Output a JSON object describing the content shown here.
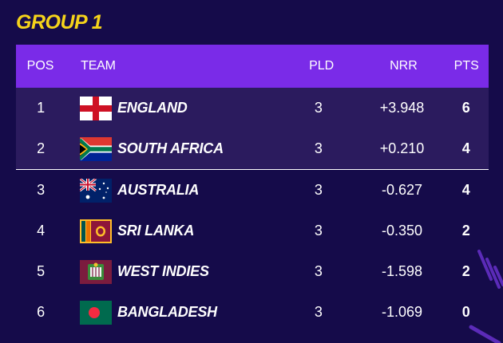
{
  "title": "GROUP 1",
  "headers": {
    "pos": "POS",
    "team": "TEAM",
    "pld": "PLD",
    "nrr": "NRR",
    "pts": "PTS"
  },
  "rows": [
    {
      "pos": "1",
      "team": "ENGLAND",
      "flag": "england-flag-icon",
      "pld": "3",
      "nrr": "+3.948",
      "pts": "6"
    },
    {
      "pos": "2",
      "team": "SOUTH AFRICA",
      "flag": "south-africa-flag-icon",
      "pld": "3",
      "nrr": "+0.210",
      "pts": "4"
    },
    {
      "pos": "3",
      "team": "AUSTRALIA",
      "flag": "australia-flag-icon",
      "pld": "3",
      "nrr": "-0.627",
      "pts": "4"
    },
    {
      "pos": "4",
      "team": "SRI LANKA",
      "flag": "sri-lanka-flag-icon",
      "pld": "3",
      "nrr": "-0.350",
      "pts": "2"
    },
    {
      "pos": "5",
      "team": "WEST INDIES",
      "flag": "west-indies-flag-icon",
      "pld": "3",
      "nrr": "-1.598",
      "pts": "2"
    },
    {
      "pos": "6",
      "team": "BANGLADESH",
      "flag": "bangladesh-flag-icon",
      "pld": "3",
      "nrr": "-1.069",
      "pts": "0"
    }
  ],
  "colors": {
    "background": "#150b4a",
    "header": "#7a2be8",
    "qualified_row": "#2b1b5e",
    "title": "#f5d31a"
  }
}
